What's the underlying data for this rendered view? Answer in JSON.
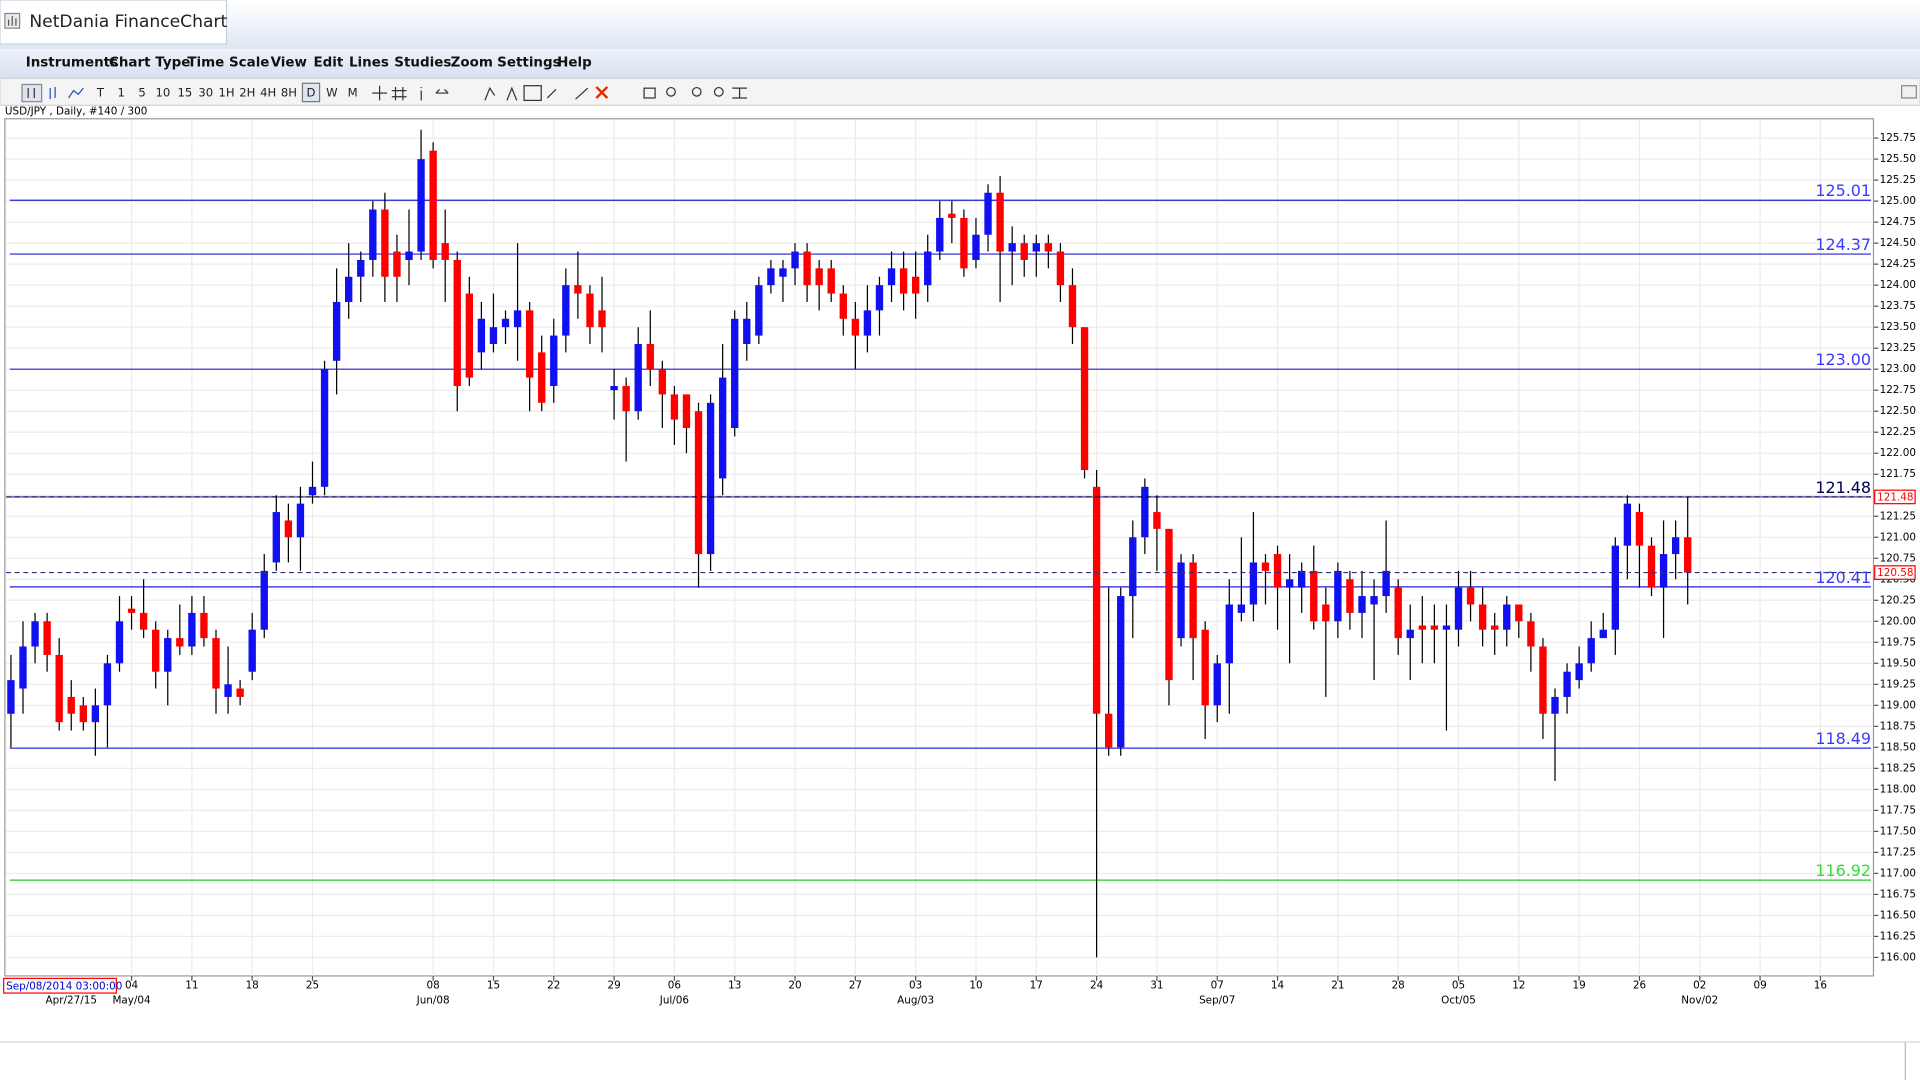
{
  "window": {
    "title": "NetDania FinanceChart",
    "menu": [
      "Instruments",
      "Chart Type",
      "Time Scale",
      "View",
      "Edit",
      "Lines",
      "Studies",
      "Zoom",
      "Settings",
      "Help"
    ],
    "timeframes": [
      "T",
      "1",
      "5",
      "10",
      "15",
      "30",
      "1H",
      "2H",
      "4H",
      "8H",
      "D",
      "W",
      "M"
    ],
    "selected_timeframe": "D"
  },
  "chart_data": {
    "type": "candlestick",
    "header": "USD/JPY , Daily, #140 / 300",
    "cursor_date": "Sep/08/2014 03:00:00",
    "up_color": "#1010f0",
    "down_color": "#ff0000",
    "grid": true,
    "xlim": [
      -0.5,
      154.4
    ],
    "ylim": [
      115.78,
      125.98
    ],
    "open": [
      118.9,
      119.2,
      119.7,
      120.0,
      119.6,
      119.1,
      119.0,
      118.8,
      119.0,
      119.5,
      120.15,
      120.1,
      119.9,
      119.4,
      119.8,
      119.7,
      120.1,
      119.8,
      119.1,
      119.2,
      119.4,
      119.9,
      120.7,
      121.2,
      121.0,
      121.5,
      121.6,
      123.1,
      123.8,
      124.1,
      124.3,
      124.9,
      124.4,
      124.3,
      124.4,
      125.6,
      124.5,
      124.3,
      123.9,
      123.2,
      123.3,
      123.5,
      123.5,
      123.7,
      123.2,
      122.8,
      123.4,
      124.0,
      123.9,
      123.7,
      122.75,
      122.8,
      122.5,
      123.3,
      123.0,
      122.7,
      122.7,
      122.5,
      120.8,
      121.7,
      122.3,
      123.3,
      123.4,
      124.0,
      124.1,
      124.2,
      124.4,
      124.2,
      124.2,
      123.9,
      123.6,
      123.4,
      123.7,
      124.0,
      124.2,
      124.1,
      124.0,
      124.4,
      124.85,
      124.8,
      124.3,
      124.6,
      125.1,
      124.4,
      124.5,
      124.4,
      124.5,
      124.4,
      124.0,
      123.5,
      121.6,
      118.9,
      118.5,
      120.3,
      121.0,
      121.3,
      121.1,
      119.8,
      120.7,
      119.9,
      119.0,
      119.5,
      120.1,
      120.2,
      120.7,
      120.8,
      120.4,
      120.4,
      120.6,
      120.2,
      120.0,
      120.5,
      120.1,
      120.2,
      120.3,
      120.4,
      119.8,
      119.95,
      119.95,
      119.9,
      119.9,
      120.4,
      120.2,
      119.95,
      119.9,
      120.2,
      120.0,
      119.7,
      118.9,
      119.1,
      119.3,
      119.5,
      119.8,
      119.9,
      120.9,
      121.3,
      120.9,
      120.4,
      120.8,
      121.0
    ],
    "high": [
      119.6,
      120.0,
      120.1,
      120.1,
      119.8,
      119.3,
      119.1,
      119.2,
      119.6,
      120.3,
      120.3,
      120.5,
      120.0,
      119.9,
      120.2,
      120.3,
      120.3,
      119.9,
      119.7,
      119.3,
      120.1,
      120.8,
      121.5,
      121.4,
      121.6,
      121.9,
      123.1,
      124.2,
      124.5,
      124.4,
      125.0,
      125.1,
      124.6,
      124.9,
      125.85,
      125.7,
      124.9,
      124.4,
      124.1,
      123.8,
      123.9,
      123.7,
      124.5,
      123.8,
      123.4,
      123.6,
      124.2,
      124.4,
      124.0,
      124.1,
      123.0,
      122.9,
      123.5,
      123.7,
      123.1,
      122.8,
      122.7,
      122.6,
      122.7,
      123.3,
      123.7,
      123.8,
      124.1,
      124.3,
      124.3,
      124.5,
      124.5,
      124.3,
      124.3,
      124.0,
      123.8,
      124.0,
      124.1,
      124.4,
      124.4,
      124.4,
      124.6,
      125.0,
      125.0,
      124.9,
      124.8,
      125.2,
      125.3,
      124.7,
      124.6,
      124.6,
      124.6,
      124.5,
      124.2,
      123.5,
      121.8,
      120.4,
      120.4,
      121.2,
      121.7,
      121.5,
      121.1,
      120.8,
      120.8,
      120.0,
      119.6,
      120.5,
      121.0,
      121.3,
      120.8,
      120.9,
      120.8,
      120.7,
      120.9,
      120.4,
      120.7,
      120.6,
      120.6,
      120.5,
      121.2,
      120.5,
      120.2,
      120.3,
      120.2,
      120.2,
      120.6,
      120.6,
      120.4,
      120.1,
      120.3,
      120.2,
      120.1,
      119.8,
      119.2,
      119.5,
      119.7,
      120.0,
      120.1,
      121.0,
      121.5,
      121.4,
      121.0,
      121.2,
      121.2,
      121.48
    ],
    "low": [
      118.5,
      118.9,
      119.5,
      119.4,
      118.7,
      118.7,
      118.7,
      118.4,
      118.5,
      119.4,
      119.9,
      119.8,
      119.2,
      119.0,
      119.6,
      119.6,
      119.7,
      118.9,
      118.9,
      119.0,
      119.3,
      119.8,
      120.6,
      120.7,
      120.6,
      121.4,
      121.5,
      122.7,
      123.6,
      123.8,
      124.1,
      123.8,
      123.8,
      124.0,
      124.3,
      124.2,
      123.8,
      122.5,
      122.8,
      123.0,
      123.2,
      123.3,
      123.1,
      122.5,
      122.5,
      122.6,
      123.2,
      123.6,
      123.3,
      123.2,
      122.4,
      121.9,
      122.4,
      122.8,
      122.3,
      122.1,
      122.0,
      120.4,
      120.6,
      121.5,
      122.2,
      123.1,
      123.3,
      123.9,
      123.8,
      124.0,
      123.8,
      123.7,
      123.8,
      123.4,
      123.0,
      123.2,
      123.4,
      123.8,
      123.7,
      123.6,
      123.8,
      124.3,
      124.5,
      124.1,
      124.2,
      124.4,
      123.8,
      124.0,
      124.1,
      124.1,
      124.2,
      123.8,
      123.3,
      121.7,
      116.0,
      118.4,
      118.4,
      119.8,
      120.8,
      120.6,
      119.0,
      119.7,
      119.3,
      118.6,
      118.8,
      118.9,
      120.0,
      120.0,
      120.2,
      119.9,
      119.5,
      120.1,
      119.9,
      119.1,
      119.8,
      119.9,
      119.8,
      119.3,
      120.1,
      119.6,
      119.3,
      119.5,
      119.5,
      118.7,
      119.7,
      120.0,
      119.7,
      119.6,
      119.7,
      119.8,
      119.4,
      118.6,
      118.1,
      118.9,
      119.2,
      119.4,
      119.8,
      119.6,
      120.5,
      120.4,
      120.3,
      119.8,
      120.5,
      120.2
    ],
    "close": [
      119.3,
      119.7,
      120.0,
      119.6,
      118.8,
      118.9,
      118.8,
      119.0,
      119.5,
      120.0,
      120.1,
      119.9,
      119.4,
      119.8,
      119.7,
      120.1,
      119.8,
      119.2,
      119.25,
      119.1,
      119.9,
      120.6,
      121.3,
      121.0,
      121.4,
      121.6,
      123.0,
      123.8,
      124.1,
      124.3,
      124.9,
      124.1,
      124.1,
      124.4,
      125.5,
      124.3,
      124.3,
      122.8,
      122.9,
      123.6,
      123.5,
      123.6,
      123.7,
      122.9,
      122.6,
      123.4,
      124.0,
      123.9,
      123.5,
      123.5,
      122.8,
      122.5,
      123.3,
      123.0,
      122.7,
      122.4,
      122.3,
      120.8,
      122.6,
      122.9,
      123.6,
      123.6,
      124.0,
      124.2,
      124.2,
      124.4,
      124.0,
      124.0,
      123.9,
      123.6,
      123.4,
      123.7,
      124.0,
      124.2,
      123.9,
      123.9,
      124.4,
      124.8,
      124.8,
      124.2,
      124.6,
      125.1,
      124.4,
      124.5,
      124.3,
      124.5,
      124.4,
      124.0,
      123.5,
      121.8,
      118.9,
      118.5,
      120.3,
      121.0,
      121.6,
      121.1,
      119.3,
      120.7,
      119.8,
      119.0,
      119.5,
      120.2,
      120.2,
      120.7,
      120.6,
      120.4,
      120.5,
      120.6,
      120.0,
      120.0,
      120.6,
      120.1,
      120.3,
      120.3,
      120.6,
      119.8,
      119.9,
      119.9,
      119.9,
      119.95,
      120.4,
      120.2,
      119.9,
      119.9,
      120.2,
      120.0,
      119.7,
      118.9,
      119.1,
      119.4,
      119.5,
      119.8,
      119.9,
      120.9,
      121.4,
      120.9,
      120.4,
      120.8,
      121.0,
      120.58
    ],
    "levels": {
      "values": [
        125.01,
        124.37,
        123.0,
        121.48,
        120.41,
        118.49,
        116.92
      ],
      "value_labels": [
        "125.01",
        "124.37",
        "123.00",
        "121.48",
        "120.41",
        "118.49",
        "116.92"
      ],
      "colors": [
        "#2020d8",
        "#2020d8",
        "#2020d8",
        "#2020d8",
        "#2020d8",
        "#2020d8",
        "#22cc22"
      ],
      "label_colors": [
        "#3a3aff",
        "#3a3aff",
        "#3a3aff",
        "#000050",
        "#3a3aff",
        "#3a3aff",
        "#33dd33"
      ]
    },
    "dashed_lines": {
      "values": [
        121.48,
        120.58
      ],
      "colors": [
        "#000000",
        "#303080"
      ]
    },
    "yticks": [
      {
        "value": 116,
        "label": "116.00"
      },
      {
        "value": 116.25,
        "label": "116.25"
      },
      {
        "value": 116.5,
        "label": "116.50"
      },
      {
        "value": 116.75,
        "label": "116.75"
      },
      {
        "value": 117,
        "label": "117.00"
      },
      {
        "value": 117.25,
        "label": "117.25"
      },
      {
        "value": 117.5,
        "label": "117.50"
      },
      {
        "value": 117.75,
        "label": "117.75"
      },
      {
        "value": 118,
        "label": "118.00"
      },
      {
        "value": 118.25,
        "label": "118.25"
      },
      {
        "value": 118.5,
        "label": "118.50"
      },
      {
        "value": 118.75,
        "label": "118.75"
      },
      {
        "value": 119,
        "label": "119.00"
      },
      {
        "value": 119.25,
        "label": "119.25"
      },
      {
        "value": 119.5,
        "label": "119.50"
      },
      {
        "value": 119.75,
        "label": "119.75"
      },
      {
        "value": 120,
        "label": "120.00"
      },
      {
        "value": 120.25,
        "label": "120.25"
      },
      {
        "value": 120.5,
        "label": "120.50"
      },
      {
        "value": 120.75,
        "label": "120.75"
      },
      {
        "value": 121,
        "label": "121.00"
      },
      {
        "value": 121.25,
        "label": "121.25"
      },
      {
        "value": 121.5,
        "label": "121.50"
      },
      {
        "value": 121.75,
        "label": "121.75"
      },
      {
        "value": 122,
        "label": "122.00"
      },
      {
        "value": 122.25,
        "label": "122.25"
      },
      {
        "value": 122.5,
        "label": "122.50"
      },
      {
        "value": 122.75,
        "label": "122.75"
      },
      {
        "value": 123,
        "label": "123.00"
      },
      {
        "value": 123.25,
        "label": "123.25"
      },
      {
        "value": 123.5,
        "label": "123.50"
      },
      {
        "value": 123.75,
        "label": "123.75"
      },
      {
        "value": 124,
        "label": "124.00"
      },
      {
        "value": 124.25,
        "label": "124.25"
      },
      {
        "value": 124.5,
        "label": "124.50"
      },
      {
        "value": 124.75,
        "label": "124.75"
      },
      {
        "value": 125,
        "label": "125.00"
      },
      {
        "value": 125.25,
        "label": "125.25"
      },
      {
        "value": 125.5,
        "label": "125.50"
      },
      {
        "value": 125.75,
        "label": "125.75"
      }
    ],
    "xticks": [
      {
        "value": 10,
        "label": "04"
      },
      {
        "value": 15,
        "label": "11"
      },
      {
        "value": 20,
        "label": "18"
      },
      {
        "value": 25,
        "label": "25"
      },
      {
        "value": 35,
        "label": "08"
      },
      {
        "value": 40,
        "label": "15"
      },
      {
        "value": 45,
        "label": "22"
      },
      {
        "value": 50,
        "label": "29"
      },
      {
        "value": 55,
        "label": "06"
      },
      {
        "value": 60,
        "label": "13"
      },
      {
        "value": 65,
        "label": "20"
      },
      {
        "value": 70,
        "label": "27"
      },
      {
        "value": 75,
        "label": "03"
      },
      {
        "value": 80,
        "label": "10"
      },
      {
        "value": 85,
        "label": "17"
      },
      {
        "value": 90,
        "label": "24"
      },
      {
        "value": 95,
        "label": "31"
      },
      {
        "value": 100,
        "label": "07"
      },
      {
        "value": 105,
        "label": "14"
      },
      {
        "value": 110,
        "label": "21"
      },
      {
        "value": 115,
        "label": "28"
      },
      {
        "value": 120,
        "label": "05"
      },
      {
        "value": 125,
        "label": "12"
      },
      {
        "value": 130,
        "label": "19"
      },
      {
        "value": 135,
        "label": "26"
      },
      {
        "value": 140,
        "label": "02"
      },
      {
        "value": 145,
        "label": "09"
      },
      {
        "value": 150,
        "label": "16"
      }
    ],
    "xticks_secondary": [
      {
        "value": 5,
        "label": "Apr/27/15"
      },
      {
        "value": 10,
        "label": "May/04"
      },
      {
        "value": 35,
        "label": "Jun/08"
      },
      {
        "value": 55,
        "label": "Jul/06"
      },
      {
        "value": 75,
        "label": "Aug/03"
      },
      {
        "value": 100,
        "label": "Sep/07"
      },
      {
        "value": 120,
        "label": "Oct/05"
      },
      {
        "value": 140,
        "label": "Nov/02"
      }
    ]
  }
}
